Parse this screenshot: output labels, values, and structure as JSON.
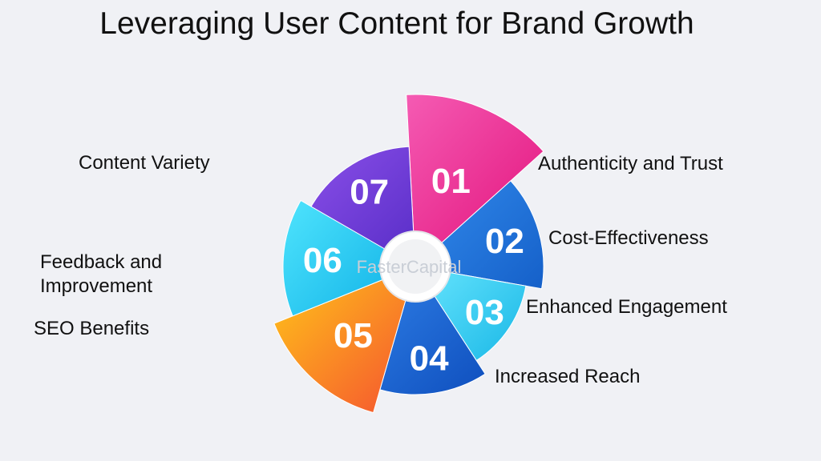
{
  "title": "Leveraging User Content for Brand Growth",
  "watermark": "FasterCapital",
  "segments": [
    {
      "number": "01",
      "label": "Authenticity and Trust",
      "color": "#e3157e",
      "color_light": "#f55bb3"
    },
    {
      "number": "02",
      "label": "Cost-Effectiveness",
      "color": "#1560c9",
      "color_light": "#2f86e8"
    },
    {
      "number": "03",
      "label": "Enhanced Engagement",
      "color": "#18b7e6",
      "color_light": "#5fe0fb"
    },
    {
      "number": "04",
      "label": "Increased Reach",
      "color": "#0f4fbe",
      "color_light": "#2a78e0"
    },
    {
      "number": "05",
      "label": "SEO Benefits",
      "color": "#f5552f",
      "color_light": "#ffc21a"
    },
    {
      "number": "06",
      "label": "Feedback and Improvement",
      "color": "#14b5e8",
      "color_light": "#4fe4fd"
    },
    {
      "number": "07",
      "label": "Content Variety",
      "color": "#5b2fc9",
      "color_light": "#8a4fe8"
    }
  ]
}
